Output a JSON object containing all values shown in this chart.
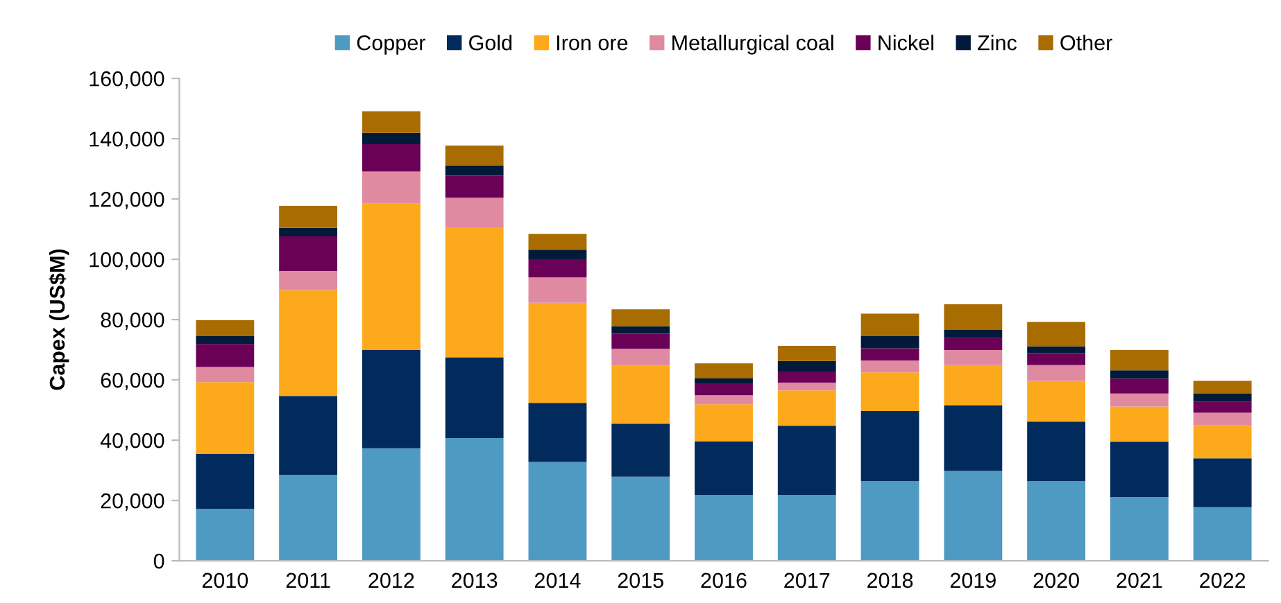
{
  "chart_data": {
    "type": "bar",
    "stacked": true,
    "ylabel": "Capex (US$M)",
    "categories": [
      "2010",
      "2011",
      "2012",
      "2013",
      "2014",
      "2015",
      "2016",
      "2017",
      "2018",
      "2019",
      "2020",
      "2021",
      "2022"
    ],
    "series": [
      {
        "name": "Copper",
        "color": "#4f9ac2",
        "values": [
          17200,
          28500,
          37300,
          40700,
          32800,
          27900,
          21800,
          21800,
          26400,
          29800,
          26400,
          21200,
          17800
        ]
      },
      {
        "name": "Gold",
        "color": "#002b5c",
        "values": [
          18200,
          26200,
          32600,
          26800,
          19600,
          17600,
          17800,
          23000,
          23300,
          21800,
          19800,
          18300,
          16200
        ]
      },
      {
        "name": "Iron ore",
        "color": "#fcaa1b",
        "values": [
          23900,
          35100,
          48600,
          43100,
          33200,
          19200,
          12300,
          11700,
          12800,
          13300,
          13500,
          11700,
          10900
        ]
      },
      {
        "name": "Metallurgical coal",
        "color": "#e08aa2",
        "values": [
          5000,
          6300,
          10600,
          9800,
          8400,
          5600,
          3000,
          2600,
          3900,
          5000,
          5200,
          4300,
          4200
        ]
      },
      {
        "name": "Nickel",
        "color": "#6b0057",
        "values": [
          7600,
          11500,
          9100,
          7300,
          6000,
          5000,
          4000,
          3700,
          4100,
          4000,
          4000,
          4900,
          3600
        ]
      },
      {
        "name": "Zinc",
        "color": "#021a3a",
        "values": [
          2600,
          2800,
          3700,
          3500,
          3200,
          2500,
          1600,
          3500,
          4000,
          2700,
          2200,
          2800,
          2700
        ]
      },
      {
        "name": "Other",
        "color": "#a86c00",
        "values": [
          5300,
          7300,
          7200,
          6500,
          5200,
          5600,
          5000,
          5000,
          7500,
          8500,
          8100,
          6700,
          4300
        ]
      }
    ],
    "ylim": [
      0,
      160000
    ],
    "yticks": [
      0,
      {
        "value": 20000,
        "label": "20,000"
      },
      {
        "value": 40000,
        "label": "40,000"
      },
      {
        "value": 60000,
        "label": "60,000"
      },
      {
        "value": 80000,
        "label": "80,000"
      },
      {
        "value": 100000,
        "label": "100,000"
      },
      {
        "value": 120000,
        "label": "120,000"
      },
      {
        "value": 140000,
        "label": "140,000"
      },
      {
        "value": 160000,
        "label": "160,000"
      }
    ],
    "grid": false,
    "legend": "top"
  }
}
